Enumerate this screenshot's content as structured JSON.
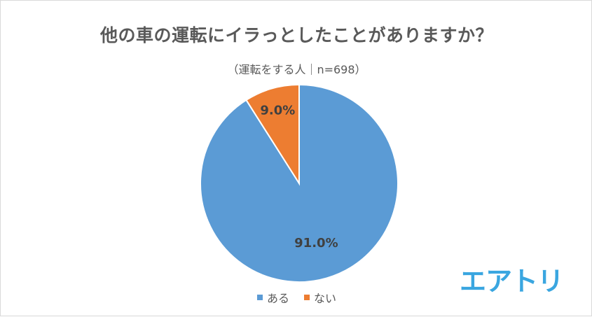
{
  "chart_data": {
    "type": "pie",
    "title": "他の車の運転にイラっとしたことがありますか？",
    "subtitle": "（運転をする人｜n=698）",
    "categories": [
      "ある",
      "ない"
    ],
    "values": [
      91.0,
      9.0
    ],
    "labels": [
      "91.0%",
      "9.0%"
    ],
    "colors": [
      "#5b9bd5",
      "#ed7d31"
    ],
    "legend_position": "bottom"
  },
  "logo": {
    "text": "エアトリ",
    "color": "#3aa6e0"
  }
}
